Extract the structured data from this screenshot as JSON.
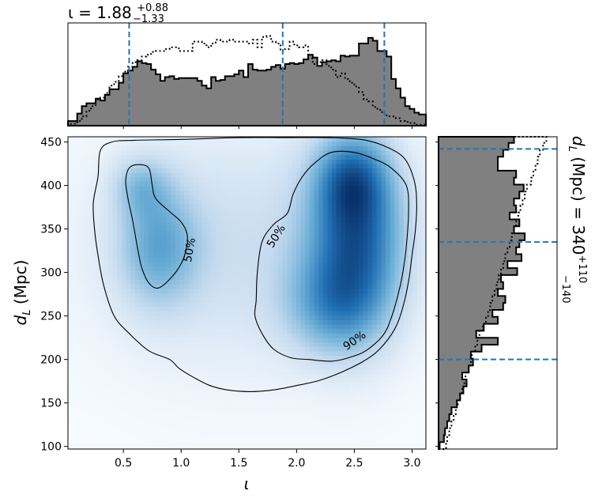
{
  "chart_data": {
    "type": "heatmap",
    "joint": {
      "xlabel_symbol": "ι",
      "ylabel_main": "d",
      "ylabel_sub": "L",
      "ylabel_unit": " (Mpc)",
      "xlim": [
        0.02,
        3.12
      ],
      "ylim": [
        97,
        456
      ],
      "x_ticks": [
        0.5,
        1.0,
        1.5,
        2.0,
        2.5,
        3.0
      ],
      "x_tick_labels": [
        "0.5",
        "1.0",
        "1.5",
        "2.0",
        "2.5",
        "3.0"
      ],
      "y_ticks": [
        100,
        150,
        200,
        250,
        300,
        350,
        400,
        450
      ],
      "y_tick_labels": [
        "100",
        "150",
        "200",
        "250",
        "300",
        "350",
        "400",
        "450"
      ],
      "colormap": [
        "#f7fbff",
        "#c6dbef",
        "#6baed6",
        "#2171b5",
        "#08306b"
      ],
      "density_peaks": [
        {
          "x": 2.52,
          "y": 340,
          "sx": 0.3,
          "sy": 75,
          "w": 1.0
        },
        {
          "x": 2.48,
          "y": 410,
          "sx": 0.22,
          "sy": 35,
          "w": 0.55
        },
        {
          "x": 2.3,
          "y": 260,
          "sx": 0.3,
          "sy": 40,
          "w": 0.45
        },
        {
          "x": 0.8,
          "y": 330,
          "sx": 0.25,
          "sy": 50,
          "w": 0.55
        },
        {
          "x": 0.65,
          "y": 400,
          "sx": 0.18,
          "sy": 25,
          "w": 0.35
        },
        {
          "x": 1.5,
          "y": 330,
          "sx": 0.9,
          "sy": 100,
          "w": 0.3
        }
      ],
      "contours": [
        {
          "label": "50%",
          "label_at": [
            1.07,
            326
          ],
          "label_angle": -80,
          "points": [
            [
              0.52,
              405
            ],
            [
              0.55,
              420
            ],
            [
              0.63,
              424
            ],
            [
              0.72,
              420
            ],
            [
              0.75,
              400
            ],
            [
              0.78,
              385
            ],
            [
              0.9,
              370
            ],
            [
              1.0,
              358
            ],
            [
              1.05,
              345
            ],
            [
              1.05,
              330
            ],
            [
              1.0,
              310
            ],
            [
              0.9,
              292
            ],
            [
              0.8,
              282
            ],
            [
              0.72,
              288
            ],
            [
              0.66,
              305
            ],
            [
              0.62,
              330
            ],
            [
              0.58,
              360
            ],
            [
              0.54,
              385
            ]
          ]
        },
        {
          "label": "50%",
          "label_at": [
            1.82,
            342
          ],
          "label_angle": -58,
          "points": [
            [
              1.65,
              268
            ],
            [
              1.66,
              300
            ],
            [
              1.7,
              335
            ],
            [
              1.8,
              355
            ],
            [
              1.92,
              368
            ],
            [
              1.97,
              390
            ],
            [
              2.05,
              410
            ],
            [
              2.15,
              425
            ],
            [
              2.3,
              438
            ],
            [
              2.5,
              438
            ],
            [
              2.68,
              430
            ],
            [
              2.82,
              420
            ],
            [
              2.95,
              400
            ],
            [
              2.97,
              370
            ],
            [
              2.95,
              330
            ],
            [
              2.92,
              300
            ],
            [
              2.88,
              275
            ],
            [
              2.82,
              248
            ],
            [
              2.75,
              228
            ],
            [
              2.6,
              210
            ],
            [
              2.45,
              202
            ],
            [
              2.3,
              198
            ],
            [
              2.1,
              200
            ],
            [
              1.95,
              202
            ],
            [
              1.8,
              212
            ],
            [
              1.7,
              230
            ],
            [
              1.64,
              250
            ]
          ]
        },
        {
          "label": "90%",
          "label_at": [
            2.5,
            222
          ],
          "label_angle": -35,
          "points": [
            [
              0.24,
              380
            ],
            [
              0.28,
              410
            ],
            [
              0.3,
              440
            ],
            [
              0.4,
              450
            ],
            [
              0.6,
              452
            ],
            [
              1.0,
              453
            ],
            [
              1.5,
              455
            ],
            [
              1.9,
              455
            ],
            [
              2.3,
              455
            ],
            [
              2.6,
              452
            ],
            [
              2.8,
              443
            ],
            [
              2.94,
              430
            ],
            [
              3.02,
              405
            ],
            [
              3.04,
              380
            ],
            [
              3.03,
              350
            ],
            [
              3.0,
              320
            ],
            [
              2.97,
              290
            ],
            [
              2.92,
              260
            ],
            [
              2.85,
              235
            ],
            [
              2.72,
              212
            ],
            [
              2.58,
              198
            ],
            [
              2.4,
              186
            ],
            [
              2.2,
              176
            ],
            [
              2.0,
              170
            ],
            [
              1.8,
              165
            ],
            [
              1.6,
              163
            ],
            [
              1.4,
              165
            ],
            [
              1.25,
              170
            ],
            [
              1.1,
              180
            ],
            [
              0.98,
              190
            ],
            [
              0.9,
              200
            ],
            [
              0.72,
              210
            ],
            [
              0.55,
              230
            ],
            [
              0.42,
              250
            ],
            [
              0.33,
              285
            ],
            [
              0.28,
              320
            ],
            [
              0.25,
              350
            ]
          ]
        }
      ]
    },
    "top_hist": {
      "title_main": "ι = 1.88",
      "title_sup": "+0.88",
      "title_sub": "−1.33",
      "xlim": [
        0.02,
        3.12
      ],
      "ylim": [
        0,
        1.1
      ],
      "bin_edges": [
        0.02,
        0.1,
        0.14,
        0.18,
        0.22,
        0.26,
        0.3,
        0.34,
        0.38,
        0.42,
        0.46,
        0.5,
        0.54,
        0.58,
        0.62,
        0.66,
        0.7,
        0.74,
        0.78,
        0.82,
        0.86,
        0.9,
        0.94,
        0.98,
        1.02,
        1.06,
        1.1,
        1.14,
        1.18,
        1.22,
        1.26,
        1.3,
        1.34,
        1.38,
        1.42,
        1.46,
        1.5,
        1.54,
        1.58,
        1.62,
        1.66,
        1.7,
        1.74,
        1.78,
        1.82,
        1.86,
        1.9,
        1.94,
        1.98,
        2.02,
        2.06,
        2.1,
        2.14,
        2.18,
        2.22,
        2.26,
        2.3,
        2.34,
        2.38,
        2.42,
        2.46,
        2.5,
        2.54,
        2.58,
        2.62,
        2.66,
        2.7,
        2.74,
        2.78,
        2.82,
        2.86,
        2.9,
        2.94,
        2.98,
        3.02,
        3.06,
        3.12
      ],
      "posterior_counts": [
        0.05,
        0.13,
        0.21,
        0.24,
        0.24,
        0.29,
        0.27,
        0.33,
        0.39,
        0.39,
        0.46,
        0.56,
        0.59,
        0.63,
        0.69,
        0.67,
        0.66,
        0.6,
        0.55,
        0.48,
        0.52,
        0.53,
        0.5,
        0.51,
        0.51,
        0.51,
        0.51,
        0.48,
        0.43,
        0.4,
        0.52,
        0.48,
        0.49,
        0.53,
        0.53,
        0.55,
        0.59,
        0.52,
        0.66,
        0.6,
        0.59,
        0.59,
        0.6,
        0.63,
        0.65,
        0.61,
        0.66,
        0.67,
        0.66,
        0.67,
        0.71,
        0.76,
        0.73,
        0.64,
        0.68,
        0.69,
        0.7,
        0.69,
        0.75,
        0.74,
        0.75,
        0.75,
        0.88,
        0.88,
        0.94,
        0.91,
        0.8,
        0.8,
        0.74,
        0.5,
        0.4,
        0.3,
        0.21,
        0.18,
        0.14,
        0.12
      ],
      "prior_counts": [
        0.02,
        0.05,
        0.1,
        0.16,
        0.21,
        0.28,
        0.3,
        0.35,
        0.43,
        0.47,
        0.53,
        0.58,
        0.63,
        0.68,
        0.7,
        0.74,
        0.76,
        0.79,
        0.8,
        0.8,
        0.82,
        0.84,
        0.84,
        0.8,
        0.8,
        0.8,
        0.9,
        0.9,
        0.88,
        0.84,
        0.88,
        0.92,
        0.9,
        0.9,
        0.92,
        0.9,
        0.9,
        0.9,
        0.88,
        0.92,
        0.84,
        0.95,
        0.96,
        0.9,
        0.88,
        0.8,
        0.82,
        0.9,
        0.86,
        0.84,
        0.86,
        0.72,
        0.66,
        0.68,
        0.7,
        0.64,
        0.6,
        0.52,
        0.56,
        0.5,
        0.46,
        0.42,
        0.36,
        0.28,
        0.26,
        0.2,
        0.17,
        0.13,
        0.1,
        0.1,
        0.08,
        0.05,
        0.04,
        0.03,
        0.01,
        0.01
      ],
      "quantiles": [
        0.55,
        1.88,
        2.76
      ]
    },
    "right_hist": {
      "label_main": "d",
      "label_sub": "L",
      "label_unit": " (Mpc) = 340",
      "label_sup": "+110",
      "label_low": "−140",
      "ylim": [
        97,
        456
      ],
      "xlim": [
        0,
        1.1
      ],
      "bin_edges": [
        97,
        105,
        113,
        121,
        129,
        137,
        145,
        153,
        161,
        169,
        177,
        185,
        193,
        201,
        209,
        217,
        225,
        233,
        241,
        249,
        257,
        265,
        273,
        281,
        289,
        297,
        305,
        313,
        321,
        329,
        337,
        345,
        353,
        361,
        369,
        377,
        385,
        393,
        401,
        409,
        417,
        425,
        433,
        441,
        449,
        456
      ],
      "posterior_counts": [
        0.01,
        0.05,
        0.06,
        0.08,
        0.1,
        0.12,
        0.17,
        0.2,
        0.23,
        0.26,
        0.22,
        0.28,
        0.32,
        0.3,
        0.4,
        0.55,
        0.35,
        0.42,
        0.55,
        0.5,
        0.6,
        0.62,
        0.55,
        0.6,
        0.58,
        0.73,
        0.64,
        0.77,
        0.72,
        0.75,
        0.8,
        0.7,
        0.75,
        0.66,
        0.72,
        0.7,
        0.75,
        0.79,
        0.7,
        0.72,
        0.55,
        0.55,
        0.6,
        0.65,
        0.7
      ],
      "prior_counts": [
        0.07,
        0.08,
        0.1,
        0.12,
        0.14,
        0.16,
        0.18,
        0.2,
        0.22,
        0.24,
        0.25,
        0.28,
        0.3,
        0.31,
        0.34,
        0.36,
        0.38,
        0.41,
        0.44,
        0.46,
        0.48,
        0.5,
        0.52,
        0.54,
        0.56,
        0.58,
        0.6,
        0.62,
        0.64,
        0.66,
        0.68,
        0.7,
        0.72,
        0.74,
        0.76,
        0.78,
        0.8,
        0.82,
        0.86,
        0.88,
        0.9,
        0.92,
        0.94,
        0.97,
        1.0
      ],
      "quantiles": [
        200,
        335,
        442
      ]
    },
    "colors": {
      "hist_fill": "#808080",
      "hist_edge": "#000000",
      "quantile_line": "#1f77b4",
      "contour": "#000000"
    }
  }
}
